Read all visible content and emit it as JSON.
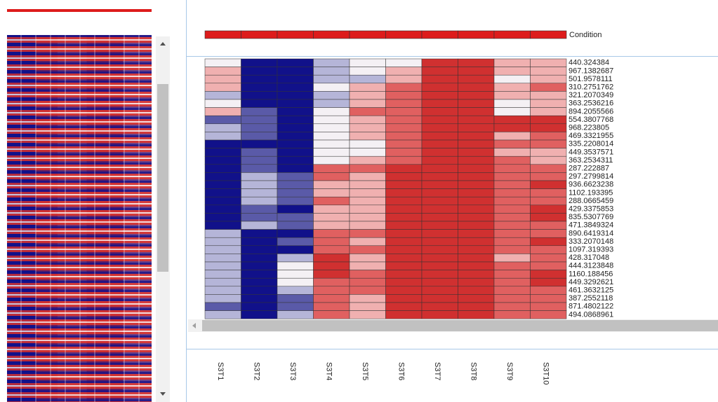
{
  "condition_label": "Condition",
  "columns": [
    "S3T1",
    "S3T2",
    "S3T3",
    "S3T4",
    "S3T5",
    "S3T6",
    "S3T7",
    "S3T8",
    "S3T9",
    "S3T10"
  ],
  "condition_color": "#dd1c1c",
  "rows": [
    {
      "label": "440.324384",
      "colors": [
        "#f4f0f4",
        "#11118a",
        "#11118a",
        "#b5b5d8",
        "#f4f0f4",
        "#f4f0f4",
        "#d03030",
        "#d03030",
        "#f0b0b0",
        "#f0b0b0"
      ]
    },
    {
      "label": "967.1382687",
      "colors": [
        "#f0b0b0",
        "#11118a",
        "#11118a",
        "#b5b5d8",
        "#f4f0f4",
        "#f0b0b0",
        "#d03030",
        "#d03030",
        "#f0b0b0",
        "#f0b0b0"
      ]
    },
    {
      "label": "501.9578111",
      "colors": [
        "#f0b0b0",
        "#11118a",
        "#11118a",
        "#b5b5d8",
        "#b5b5d8",
        "#f0b0b0",
        "#d03030",
        "#d03030",
        "#f4f0f4",
        "#f0b0b0"
      ]
    },
    {
      "label": "310.2751762",
      "colors": [
        "#f0b0b0",
        "#11118a",
        "#11118a",
        "#f4f0f4",
        "#f0b0b0",
        "#e06060",
        "#d03030",
        "#d03030",
        "#f0b0b0",
        "#e06060"
      ]
    },
    {
      "label": "321.2070349",
      "colors": [
        "#b5b5d8",
        "#11118a",
        "#11118a",
        "#b5b5d8",
        "#f0b0b0",
        "#e06060",
        "#d03030",
        "#d03030",
        "#f0b0b0",
        "#f0b0b0"
      ]
    },
    {
      "label": "363.2536216",
      "colors": [
        "#f4f0f4",
        "#11118a",
        "#11118a",
        "#b5b5d8",
        "#f0b0b0",
        "#e06060",
        "#d03030",
        "#d03030",
        "#f4f0f4",
        "#f0b0b0"
      ]
    },
    {
      "label": "894.2055566",
      "colors": [
        "#f0b0b0",
        "#5a5aa8",
        "#11118a",
        "#f4f0f4",
        "#e06060",
        "#e06060",
        "#d03030",
        "#d03030",
        "#f4f0f4",
        "#f0b0b0"
      ]
    },
    {
      "label": "554.3807768",
      "colors": [
        "#5a5aa8",
        "#5a5aa8",
        "#11118a",
        "#f4f0f4",
        "#f0b0b0",
        "#e06060",
        "#d03030",
        "#d03030",
        "#d03030",
        "#d03030"
      ]
    },
    {
      "label": "968.223805",
      "colors": [
        "#b5b5d8",
        "#5a5aa8",
        "#11118a",
        "#f4f0f4",
        "#f0b0b0",
        "#e06060",
        "#d03030",
        "#d03030",
        "#d03030",
        "#d03030"
      ]
    },
    {
      "label": "469.3321955",
      "colors": [
        "#b5b5d8",
        "#5a5aa8",
        "#11118a",
        "#f4f0f4",
        "#f0b0b0",
        "#e06060",
        "#d03030",
        "#d03030",
        "#f0b0b0",
        "#e06060"
      ]
    },
    {
      "label": "335.2208014",
      "colors": [
        "#11118a",
        "#11118a",
        "#11118a",
        "#f4f0f4",
        "#f4f0f4",
        "#e06060",
        "#d03030",
        "#d03030",
        "#e06060",
        "#e06060"
      ]
    },
    {
      "label": "449.3537571",
      "colors": [
        "#11118a",
        "#5a5aa8",
        "#11118a",
        "#f4f0f4",
        "#f4f0f4",
        "#e06060",
        "#d03030",
        "#d03030",
        "#f0b0b0",
        "#f0b0b0"
      ]
    },
    {
      "label": "363.2534311",
      "colors": [
        "#11118a",
        "#5a5aa8",
        "#11118a",
        "#f4f0f4",
        "#f0b0b0",
        "#e06060",
        "#d03030",
        "#d03030",
        "#e06060",
        "#f0b0b0"
      ]
    },
    {
      "label": "287.222887",
      "colors": [
        "#11118a",
        "#5a5aa8",
        "#11118a",
        "#e06060",
        "#e06060",
        "#d03030",
        "#d03030",
        "#d03030",
        "#e06060",
        "#e06060"
      ]
    },
    {
      "label": "297.2799814",
      "colors": [
        "#11118a",
        "#b5b5d8",
        "#5a5aa8",
        "#e06060",
        "#f0b0b0",
        "#d03030",
        "#d03030",
        "#d03030",
        "#e06060",
        "#e06060"
      ]
    },
    {
      "label": "936.6623238",
      "colors": [
        "#11118a",
        "#b5b5d8",
        "#5a5aa8",
        "#f0b0b0",
        "#f0b0b0",
        "#d03030",
        "#d03030",
        "#d03030",
        "#e06060",
        "#d03030"
      ]
    },
    {
      "label": "1102.193395",
      "colors": [
        "#11118a",
        "#b5b5d8",
        "#5a5aa8",
        "#f0b0b0",
        "#f0b0b0",
        "#d03030",
        "#d03030",
        "#d03030",
        "#e06060",
        "#e06060"
      ]
    },
    {
      "label": "288.0665459",
      "colors": [
        "#11118a",
        "#b5b5d8",
        "#5a5aa8",
        "#e06060",
        "#f0b0b0",
        "#d03030",
        "#d03030",
        "#d03030",
        "#e06060",
        "#e06060"
      ]
    },
    {
      "label": "429.3375853",
      "colors": [
        "#11118a",
        "#5a5aa8",
        "#11118a",
        "#f0b0b0",
        "#f0b0b0",
        "#d03030",
        "#d03030",
        "#d03030",
        "#e06060",
        "#d03030"
      ]
    },
    {
      "label": "835.5307769",
      "colors": [
        "#11118a",
        "#5a5aa8",
        "#5a5aa8",
        "#f0b0b0",
        "#f0b0b0",
        "#d03030",
        "#d03030",
        "#d03030",
        "#e06060",
        "#d03030"
      ]
    },
    {
      "label": "471.3849324",
      "colors": [
        "#11118a",
        "#b5b5d8",
        "#5a5aa8",
        "#f0b0b0",
        "#f0b0b0",
        "#d03030",
        "#d03030",
        "#d03030",
        "#e06060",
        "#e06060"
      ]
    },
    {
      "label": "890.6419314",
      "colors": [
        "#b5b5d8",
        "#11118a",
        "#11118a",
        "#e06060",
        "#e06060",
        "#d03030",
        "#d03030",
        "#d03030",
        "#e06060",
        "#e06060"
      ]
    },
    {
      "label": "333.2070148",
      "colors": [
        "#b5b5d8",
        "#11118a",
        "#5a5aa8",
        "#e06060",
        "#f0b0b0",
        "#d03030",
        "#d03030",
        "#d03030",
        "#e06060",
        "#d03030"
      ]
    },
    {
      "label": "1097.319393",
      "colors": [
        "#b5b5d8",
        "#11118a",
        "#11118a",
        "#e06060",
        "#e06060",
        "#d03030",
        "#d03030",
        "#d03030",
        "#e06060",
        "#e06060"
      ]
    },
    {
      "label": "428.317048",
      "colors": [
        "#b5b5d8",
        "#11118a",
        "#b5b5d8",
        "#d03030",
        "#f0b0b0",
        "#d03030",
        "#d03030",
        "#d03030",
        "#f0b0b0",
        "#e06060"
      ]
    },
    {
      "label": "444.3123848",
      "colors": [
        "#b5b5d8",
        "#11118a",
        "#f4f0f4",
        "#d03030",
        "#f0b0b0",
        "#d03030",
        "#d03030",
        "#d03030",
        "#e06060",
        "#e06060"
      ]
    },
    {
      "label": "1160.188456",
      "colors": [
        "#b5b5d8",
        "#11118a",
        "#f4f0f4",
        "#d03030",
        "#e06060",
        "#d03030",
        "#d03030",
        "#d03030",
        "#e06060",
        "#d03030"
      ]
    },
    {
      "label": "449.3292621",
      "colors": [
        "#b5b5d8",
        "#11118a",
        "#f4f0f4",
        "#e06060",
        "#e06060",
        "#d03030",
        "#d03030",
        "#d03030",
        "#e06060",
        "#d03030"
      ]
    },
    {
      "label": "461.3632125",
      "colors": [
        "#b5b5d8",
        "#11118a",
        "#b5b5d8",
        "#e06060",
        "#e06060",
        "#d03030",
        "#d03030",
        "#d03030",
        "#e06060",
        "#e06060"
      ]
    },
    {
      "label": "387.2552118",
      "colors": [
        "#b5b5d8",
        "#11118a",
        "#5a5aa8",
        "#e06060",
        "#f0b0b0",
        "#d03030",
        "#d03030",
        "#d03030",
        "#e06060",
        "#e06060"
      ]
    },
    {
      "label": "871.4802122",
      "colors": [
        "#5a5aa8",
        "#11118a",
        "#5a5aa8",
        "#e06060",
        "#f0b0b0",
        "#d03030",
        "#d03030",
        "#d03030",
        "#e06060",
        "#e06060"
      ]
    },
    {
      "label": "494.0868961",
      "colors": [
        "#b5b5d8",
        "#11118a",
        "#b5b5d8",
        "#e06060",
        "#f0b0b0",
        "#d03030",
        "#d03030",
        "#d03030",
        "#e06060",
        "#e06060"
      ]
    }
  ]
}
